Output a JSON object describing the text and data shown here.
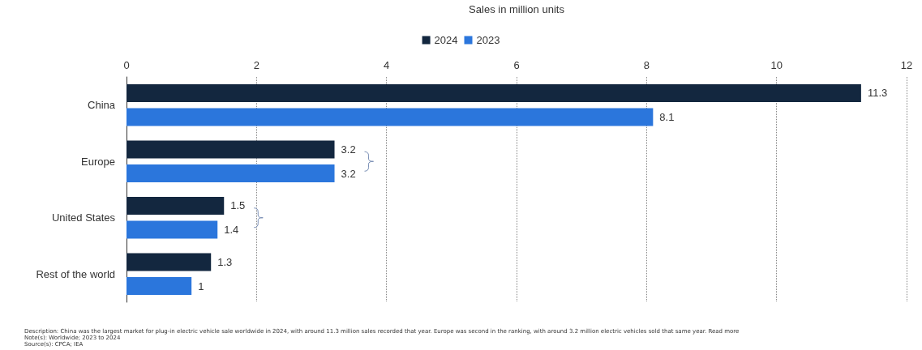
{
  "chart_data": {
    "type": "bar",
    "orientation": "horizontal",
    "xlabel": "Sales in million units",
    "categories": [
      "China",
      "Europe",
      "United States",
      "Rest of the world"
    ],
    "series": [
      {
        "name": "2024",
        "color": "#13273f",
        "values": [
          11.3,
          3.2,
          1.5,
          1.3
        ]
      },
      {
        "name": "2023",
        "color": "#2b76dc",
        "values": [
          8.1,
          3.2,
          1.4,
          1
        ]
      }
    ],
    "xlim": [
      0,
      12
    ],
    "xticks": [
      0,
      2,
      4,
      6,
      8,
      10,
      12
    ],
    "grid": "x",
    "legend": "top",
    "data_labels": true,
    "annotations": [
      "Description: China was the largest market for plug-in electric vehicle sale worldwide in 2024, with around 11.3 million sales recorded that year. Europe was second in the ranking, with around 3.2 million electric vehicles sold that same year. Read more",
      "Note(s): Worldwide; 2023 to 2024",
      "Source(s): CPCA; IEA"
    ]
  }
}
